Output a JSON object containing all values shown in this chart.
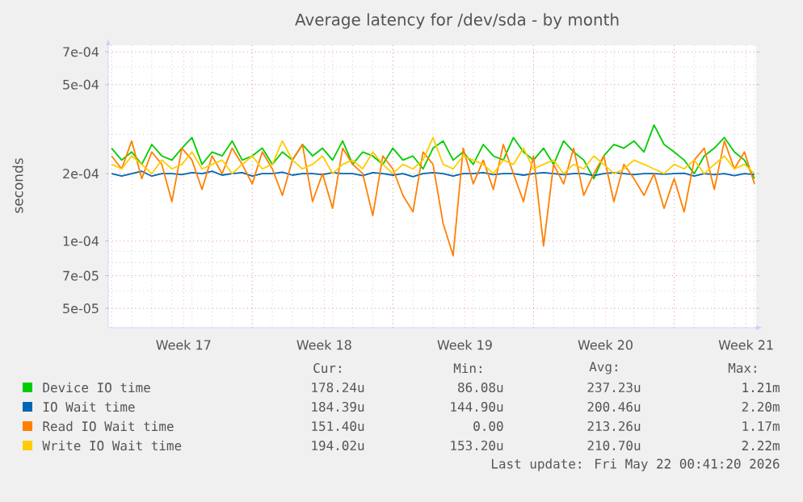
{
  "chart_data": {
    "type": "line",
    "title": "Average latency for /dev/sda - by month",
    "ylabel": "seconds",
    "log": "y",
    "grid": true,
    "legend": "bottom",
    "marker": "none",
    "line_style": "solid",
    "xlim": [
      "2026-04-19T20:00",
      "2026-05-22T02:00"
    ],
    "xticks": [
      {
        "value": "2026-04-20T00:00",
        "label": null
      },
      {
        "value": "2026-04-23T14:00",
        "label": "Week 17"
      },
      {
        "value": "2026-04-27T00:00",
        "label": null
      },
      {
        "value": "2026-04-30T14:00",
        "label": "Week 18"
      },
      {
        "value": "2026-05-04T00:00",
        "label": null
      },
      {
        "value": "2026-05-07T14:00",
        "label": "Week 19"
      },
      {
        "value": "2026-05-11T00:00",
        "label": null
      },
      {
        "value": "2026-05-14T14:00",
        "label": "Week 20"
      },
      {
        "value": "2026-05-18T00:00",
        "label": null
      },
      {
        "value": "2026-05-21T14:00",
        "label": "Week 21"
      }
    ],
    "ylim": [
      4.1e-05,
      0.00075
    ],
    "yticks": [
      {
        "value": 5e-05,
        "label": "5e-05"
      },
      {
        "value": 7e-05,
        "label": "7e-05"
      },
      {
        "value": 0.0001,
        "label": "1e-04"
      },
      {
        "value": 0.0002,
        "label": "2e-04"
      },
      {
        "value": 0.0005,
        "label": "5e-04"
      },
      {
        "value": 0.0007,
        "label": "7e-04"
      }
    ],
    "x": [
      "2026-04-20T00:00",
      "2026-04-20T12:00",
      "2026-04-21T00:00",
      "2026-04-21T12:00",
      "2026-04-22T00:00",
      "2026-04-22T12:00",
      "2026-04-23T00:00",
      "2026-04-23T12:00",
      "2026-04-24T00:00",
      "2026-04-24T12:00",
      "2026-04-25T00:00",
      "2026-04-25T12:00",
      "2026-04-26T00:00",
      "2026-04-26T12:00",
      "2026-04-27T00:00",
      "2026-04-27T12:00",
      "2026-04-28T00:00",
      "2026-04-28T12:00",
      "2026-04-29T00:00",
      "2026-04-29T12:00",
      "2026-04-30T00:00",
      "2026-04-30T12:00",
      "2026-05-01T00:00",
      "2026-05-01T12:00",
      "2026-05-02T00:00",
      "2026-05-02T12:00",
      "2026-05-03T00:00",
      "2026-05-03T12:00",
      "2026-05-04T00:00",
      "2026-05-04T12:00",
      "2026-05-05T00:00",
      "2026-05-05T12:00",
      "2026-05-06T00:00",
      "2026-05-06T12:00",
      "2026-05-07T00:00",
      "2026-05-07T12:00",
      "2026-05-08T00:00",
      "2026-05-08T12:00",
      "2026-05-09T00:00",
      "2026-05-09T12:00",
      "2026-05-10T00:00",
      "2026-05-10T12:00",
      "2026-05-11T00:00",
      "2026-05-11T12:00",
      "2026-05-12T00:00",
      "2026-05-12T12:00",
      "2026-05-13T00:00",
      "2026-05-13T12:00",
      "2026-05-14T00:00",
      "2026-05-14T12:00",
      "2026-05-15T00:00",
      "2026-05-15T12:00",
      "2026-05-16T00:00",
      "2026-05-16T12:00",
      "2026-05-17T00:00",
      "2026-05-17T12:00",
      "2026-05-18T00:00",
      "2026-05-18T12:00",
      "2026-05-19T00:00",
      "2026-05-19T12:00",
      "2026-05-20T00:00",
      "2026-05-20T12:00",
      "2026-05-21T00:00",
      "2026-05-21T12:00",
      "2026-05-22T00:00"
    ],
    "series": [
      {
        "name": "Device IO time",
        "color": "#00cc00",
        "values": [
          0.00026,
          0.00023,
          0.00025,
          0.00022,
          0.00027,
          0.00024,
          0.00023,
          0.00026,
          0.00029,
          0.00022,
          0.00025,
          0.00024,
          0.00028,
          0.00023,
          0.00024,
          0.00026,
          0.00022,
          0.00025,
          0.00023,
          0.00027,
          0.00024,
          0.00026,
          0.00023,
          0.00028,
          0.00022,
          0.00025,
          0.00024,
          0.00022,
          0.00026,
          0.00023,
          0.00024,
          0.00021,
          0.00026,
          0.00028,
          0.00023,
          0.00025,
          0.00022,
          0.00027,
          0.00024,
          0.00023,
          0.00029,
          0.00025,
          0.00023,
          0.00026,
          0.00022,
          0.00028,
          0.00025,
          0.00023,
          0.00019,
          0.00024,
          0.00027,
          0.00026,
          0.00028,
          0.00025,
          0.00033,
          0.00027,
          0.00025,
          0.00023,
          0.0002,
          0.00024,
          0.00026,
          0.00029,
          0.00025,
          0.00023,
          0.00019
        ]
      },
      {
        "name": "IO Wait time",
        "color": "#0066b3",
        "values": [
          0.0002,
          0.000195,
          0.0002,
          0.000205,
          0.000195,
          0.0002,
          0.0002,
          0.000198,
          0.000202,
          0.0002,
          0.000205,
          0.000197,
          0.0002,
          0.000202,
          0.000195,
          0.0002,
          0.0002,
          0.000203,
          0.000197,
          0.0002,
          0.0002,
          0.000198,
          0.000202,
          0.0002,
          0.0002,
          0.000196,
          0.000202,
          0.0002,
          0.000197,
          0.0002,
          0.000194,
          0.0002,
          0.000202,
          0.0002,
          0.000195,
          0.0002,
          0.0002,
          0.000202,
          0.000198,
          0.0002,
          0.0002,
          0.000197,
          0.0002,
          0.000202,
          0.0002,
          0.000198,
          0.0002,
          0.0002,
          0.000196,
          0.0002,
          0.000202,
          0.0002,
          0.000198,
          0.0002,
          0.0002,
          0.000199,
          0.0002,
          0.000201,
          0.000195,
          0.0002,
          0.000198,
          0.0002,
          0.000196,
          0.0002,
          0.000198
        ]
      },
      {
        "name": "Read IO Wait time",
        "color": "#ff8000",
        "values": [
          0.00024,
          0.00021,
          0.00028,
          0.00019,
          0.00025,
          0.00022,
          0.00015,
          0.00026,
          0.00023,
          0.00017,
          0.00024,
          0.0002,
          0.00026,
          0.00022,
          0.00018,
          0.00025,
          0.00021,
          0.00016,
          0.00023,
          0.00027,
          0.00015,
          0.0002,
          0.00014,
          0.00026,
          0.00022,
          0.0002,
          0.00013,
          0.00024,
          0.00021,
          0.00016,
          0.000135,
          0.00025,
          0.00022,
          0.00012,
          8.6e-05,
          0.00026,
          0.00018,
          0.00023,
          0.00017,
          0.00027,
          0.0002,
          0.00015,
          0.00024,
          9.5e-05,
          0.00022,
          0.00018,
          0.00026,
          0.00016,
          0.0002,
          0.00024,
          0.00015,
          0.00022,
          0.00019,
          0.00016,
          0.0002,
          0.00014,
          0.00019,
          0.000135,
          0.00023,
          0.00026,
          0.00017,
          0.00028,
          0.00021,
          0.00025,
          0.00018
        ]
      },
      {
        "name": "Write IO Wait time",
        "color": "#ffcc00",
        "values": [
          0.00022,
          0.00021,
          0.00024,
          0.00022,
          0.0002,
          0.00023,
          0.00021,
          0.00022,
          0.00025,
          0.00021,
          0.00022,
          0.00023,
          0.0002,
          0.00022,
          0.00024,
          0.00021,
          0.00022,
          0.00028,
          0.00023,
          0.00021,
          0.00022,
          0.00024,
          0.0002,
          0.00022,
          0.00023,
          0.00021,
          0.00025,
          0.00022,
          0.0002,
          0.00022,
          0.00021,
          0.00023,
          0.00029,
          0.00022,
          0.00021,
          0.00024,
          0.00023,
          0.00022,
          0.0002,
          0.00023,
          0.00022,
          0.00026,
          0.00021,
          0.00022,
          0.00023,
          0.0002,
          0.00022,
          0.00021,
          0.00024,
          0.00022,
          0.0002,
          0.00021,
          0.00023,
          0.00022,
          0.00021,
          0.0002,
          0.00022,
          0.00021,
          0.00023,
          0.0002,
          0.00022,
          0.00024,
          0.00021,
          0.00022,
          0.0002
        ]
      }
    ],
    "annotations": [
      "Cur:",
      "Min:",
      "Avg:",
      "Max:",
      "178.24u",
      "86.08u",
      "237.23u",
      "1.21m",
      "184.39u",
      "144.90u",
      "200.46u",
      "2.20m",
      "151.40u",
      "0.00",
      "213.26u",
      "1.17m",
      "194.02u",
      "153.20u",
      "210.70u",
      "2.22m",
      "Last update: Fri May 22 00:41:20 2026"
    ]
  }
}
